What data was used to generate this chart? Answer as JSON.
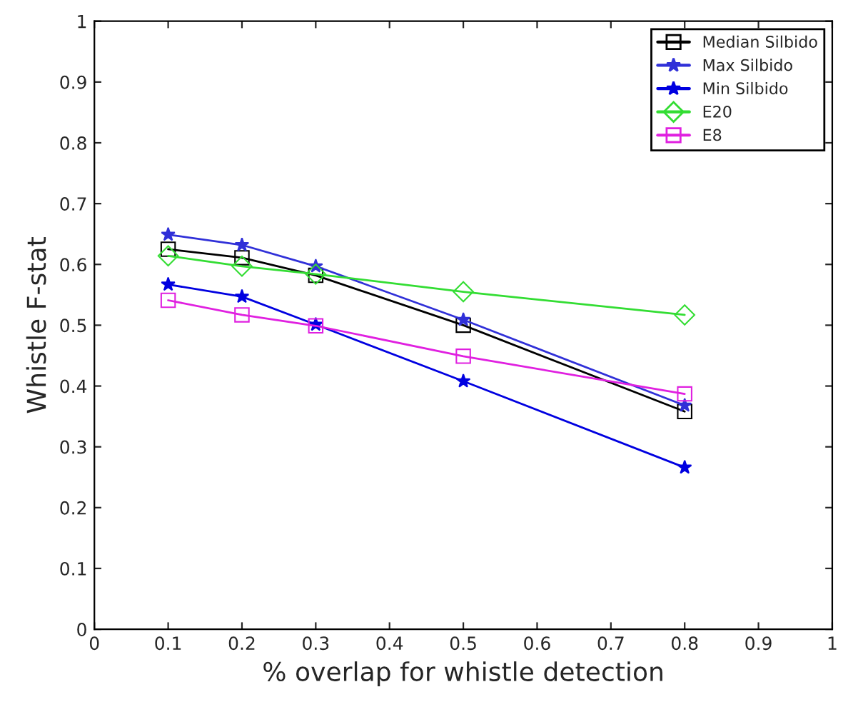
{
  "chart_data": {
    "type": "line",
    "xlabel": "% overlap for whistle detection",
    "ylabel": "Whistle F-stat",
    "x": [
      0.1,
      0.2,
      0.3,
      0.5,
      0.8
    ],
    "series": [
      {
        "name": "Median Silbido",
        "color": "#000000",
        "marker": "square",
        "values": [
          0.625,
          0.611,
          0.582,
          0.5,
          0.358
        ]
      },
      {
        "name": "Max Silbido",
        "color": "#3030d8",
        "marker": "star",
        "values": [
          0.649,
          0.632,
          0.597,
          0.509,
          0.368
        ]
      },
      {
        "name": "Min Silbido",
        "color": "#0000e0",
        "marker": "star",
        "values": [
          0.567,
          0.547,
          0.501,
          0.408,
          0.266
        ]
      },
      {
        "name": "E20",
        "color": "#33dd33",
        "marker": "diamond",
        "values": [
          0.614,
          0.597,
          0.584,
          0.555,
          0.517
        ]
      },
      {
        "name": "E8",
        "color": "#e020e0",
        "marker": "square",
        "values": [
          0.541,
          0.517,
          0.499,
          0.449,
          0.387
        ]
      }
    ],
    "xlim": [
      0,
      1
    ],
    "xticks": [
      0,
      0.1,
      0.2,
      0.3,
      0.4,
      0.5,
      0.6,
      0.7,
      0.8,
      0.9,
      1
    ],
    "ylim": [
      0,
      1
    ],
    "yticks": [
      0,
      0.1,
      0.2,
      0.3,
      0.4,
      0.5,
      0.6,
      0.7,
      0.8,
      0.9,
      1
    ],
    "legend": "top right",
    "grid": false,
    "line_style": "solid"
  }
}
